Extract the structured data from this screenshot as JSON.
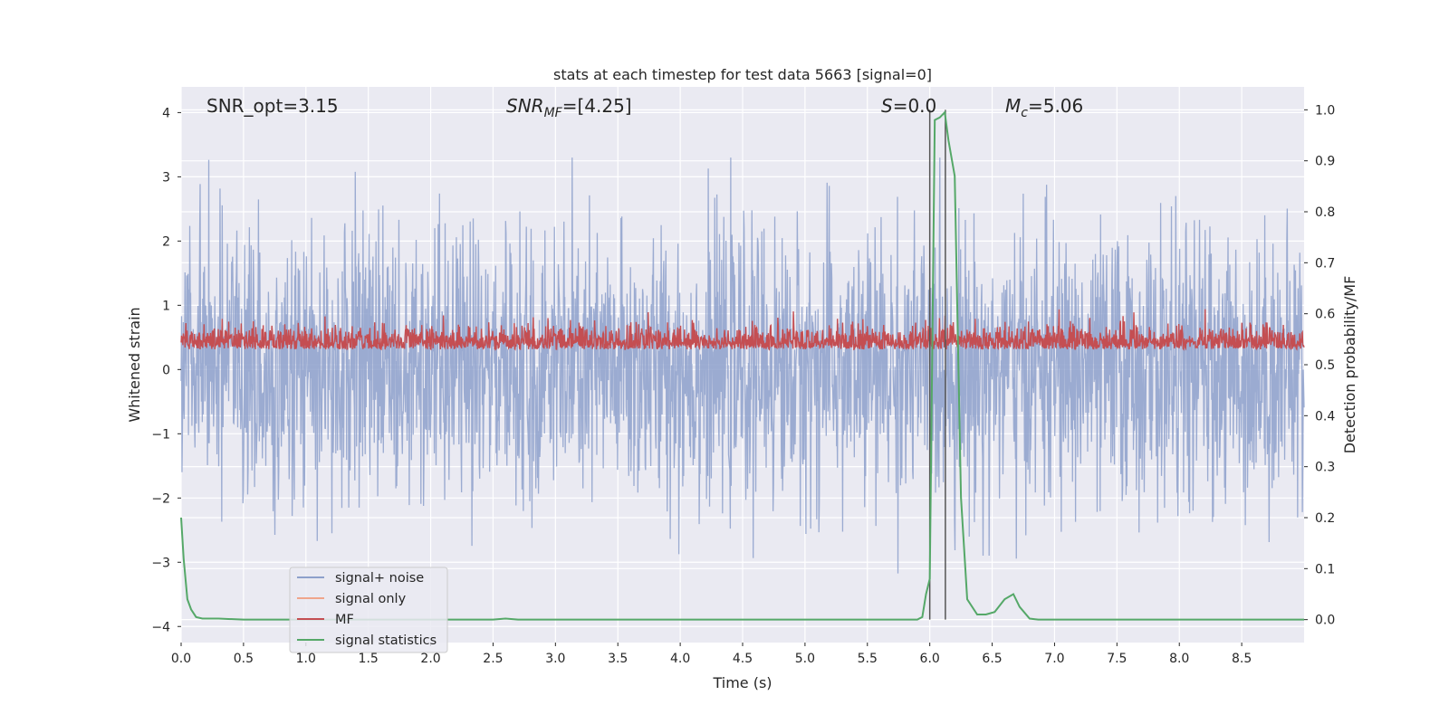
{
  "chart_data": {
    "type": "line",
    "title": "stats at each timestep for test data 5663 [signal=0]",
    "xlabel": "Time (s)",
    "ylabel": "Whitened strain",
    "y2label": "Detection probability/MF",
    "xlim": [
      0.0,
      9.0
    ],
    "ylim": [
      -4.25,
      4.4
    ],
    "y2lim": [
      -0.045,
      1.045
    ],
    "xticks": [
      "0.0",
      "0.5",
      "1.0",
      "1.5",
      "2.0",
      "2.5",
      "3.0",
      "3.5",
      "4.0",
      "4.5",
      "5.0",
      "5.5",
      "6.0",
      "6.5",
      "7.0",
      "7.5",
      "8.0",
      "8.5"
    ],
    "yticks": [
      "4",
      "3",
      "2",
      "1",
      "0",
      "−1",
      "−2",
      "−3",
      "−4"
    ],
    "y2ticks": [
      "1.0",
      "0.9",
      "0.8",
      "0.7",
      "0.6",
      "0.5",
      "0.4",
      "0.3",
      "0.2",
      "0.1",
      "0.0"
    ],
    "annotations": {
      "snr_opt": "SNR_opt=3.15",
      "snr_mf_main": "SNR",
      "snr_mf_sub": "MF",
      "snr_mf_value": "=[4.25]",
      "s_main": "S",
      "s_value": "=0.0",
      "mc_main": "M",
      "mc_sub": "c",
      "mc_value": "=5.06"
    },
    "vlines": [
      6.0,
      6.125
    ],
    "legend": {
      "position": "lower-left",
      "entries": [
        {
          "label": "signal+ noise",
          "color": "#8da0cb"
        },
        {
          "label": "signal only",
          "color": "#f0a58b"
        },
        {
          "label": "MF",
          "color": "#c44e52"
        },
        {
          "label": "signal statistics",
          "color": "#55a868"
        }
      ]
    },
    "series": [
      {
        "name": "signal statistics",
        "axis": "right",
        "color": "#55a868",
        "x": [
          0.0,
          0.02,
          0.05,
          0.08,
          0.12,
          0.17,
          0.3,
          0.5,
          1.0,
          2.0,
          2.5,
          2.6,
          2.7,
          3.0,
          4.0,
          5.0,
          5.5,
          5.9,
          5.94,
          5.97,
          6.0,
          6.04,
          6.08,
          6.12,
          6.15,
          6.2,
          6.25,
          6.3,
          6.38,
          6.45,
          6.52,
          6.6,
          6.67,
          6.72,
          6.8,
          6.87,
          7.0,
          8.0,
          9.0
        ],
        "values": [
          0.2,
          0.12,
          0.04,
          0.02,
          0.005,
          0.002,
          0.002,
          0.0,
          0.0,
          0.0,
          0.0,
          0.002,
          0.0,
          0.0,
          0.0,
          0.0,
          0.0,
          0.0,
          0.005,
          0.05,
          0.08,
          0.98,
          0.985,
          0.995,
          0.94,
          0.87,
          0.24,
          0.04,
          0.01,
          0.01,
          0.015,
          0.04,
          0.05,
          0.025,
          0.002,
          0.0,
          0.0,
          0.0,
          0.0
        ]
      },
      {
        "name": "signal+ noise",
        "axis": "left",
        "color": "#8da0cb",
        "note": "dense whitened noise, approx. range -3.7 to 3.3",
        "sample_count": 2600,
        "range": [
          -3.7,
          3.3
        ]
      },
      {
        "name": "MF",
        "axis": "right",
        "color": "#c44e52",
        "note": "matched-filter output, approx. range 0.49 to 0.62",
        "sample_count": 2600,
        "range": [
          0.49,
          0.62
        ]
      }
    ]
  }
}
